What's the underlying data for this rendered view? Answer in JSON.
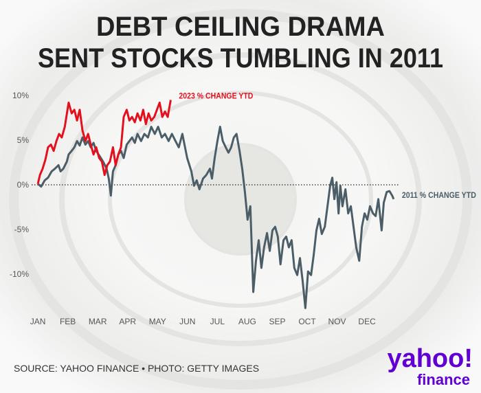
{
  "chart_data": {
    "type": "line",
    "title_lines": [
      "DEBT CEILING DRAMA",
      "SENT STOCKS TUMBLING IN 2011"
    ],
    "source": "SOURCE: YAHOO FINANCE • PHOTO: GETTY IMAGES",
    "logo": {
      "brand": "yahoo!",
      "product": "finance"
    },
    "xlim": [
      -0.3,
      12.1
    ],
    "xticks": [
      {
        "value": 0,
        "label": "JAN"
      },
      {
        "value": 1,
        "label": "FEB"
      },
      {
        "value": 2,
        "label": "MAR"
      },
      {
        "value": 3,
        "label": "APR"
      },
      {
        "value": 4,
        "label": "MAY"
      },
      {
        "value": 5,
        "label": "JUN"
      },
      {
        "value": 6,
        "label": "JUL"
      },
      {
        "value": 7,
        "label": "AUG"
      },
      {
        "value": 8,
        "label": "SEP"
      },
      {
        "value": 9,
        "label": "OCT"
      },
      {
        "value": 10,
        "label": "NOV"
      },
      {
        "value": 11,
        "label": "DEC"
      }
    ],
    "ylim": [
      -14.3,
      10.6
    ],
    "yticks": [
      {
        "value": 10,
        "label": "10%"
      },
      {
        "value": 5,
        "label": "5%"
      },
      {
        "value": 0,
        "label": "0%"
      },
      {
        "value": -5,
        "label": "-5%"
      },
      {
        "value": -10,
        "label": "-10%"
      }
    ],
    "series": [
      {
        "name": "2011 % CHANGE YTD",
        "color": "#4b5d66",
        "x": [
          0,
          0.11,
          0.23,
          0.34,
          0.46,
          0.57,
          0.69,
          0.76,
          0.85,
          0.97,
          1.03,
          1.13,
          1.22,
          1.31,
          1.4,
          1.49,
          1.59,
          1.68,
          1.77,
          1.86,
          1.95,
          2.07,
          2.18,
          2.3,
          2.37,
          2.44,
          2.51,
          2.6,
          2.69,
          2.78,
          2.87,
          2.97,
          3.06,
          3.15,
          3.24,
          3.33,
          3.45,
          3.56,
          3.68,
          3.79,
          3.91,
          4.02,
          4.14,
          4.25,
          4.37,
          4.48,
          4.6,
          4.71,
          4.83,
          4.9,
          4.99,
          5.13,
          5.22,
          5.31,
          5.4,
          5.52,
          5.63,
          5.75,
          5.82,
          5.91,
          6.0,
          6.09,
          6.18,
          6.28,
          6.37,
          6.46,
          6.55,
          6.64,
          6.74,
          6.83,
          6.92,
          7.01,
          7.1,
          7.2,
          7.29,
          7.38,
          7.47,
          7.56,
          7.66,
          7.75,
          7.84,
          7.93,
          8.02,
          8.11,
          8.21,
          8.3,
          8.39,
          8.48,
          8.57,
          8.67,
          8.76,
          8.85,
          8.94,
          9.03,
          9.13,
          9.22,
          9.31,
          9.4,
          9.49,
          9.59,
          9.68,
          9.77,
          9.84,
          9.91,
          9.98,
          10.05,
          10.11,
          10.18,
          10.28,
          10.37,
          10.46,
          10.55,
          10.64,
          10.74,
          10.83,
          10.92,
          11.01,
          11.1,
          11.2,
          11.29,
          11.38,
          11.49,
          11.56,
          11.66,
          11.75,
          11.84,
          11.89
        ],
        "values": [
          0.1,
          -0.2,
          0.5,
          0.8,
          1.5,
          1.8,
          2.2,
          1.5,
          1.8,
          2.6,
          3.4,
          3.8,
          4.2,
          4.9,
          4.4,
          5.3,
          4.5,
          4.9,
          4.2,
          4.7,
          3.8,
          3.2,
          2.6,
          1.8,
          0.7,
          -1.2,
          1.5,
          2.2,
          3.4,
          3.8,
          3.0,
          4.5,
          4.9,
          5.3,
          4.7,
          5.7,
          4.9,
          5.7,
          5.3,
          6.5,
          5.7,
          6.5,
          5.3,
          5.7,
          4.9,
          5.7,
          4.9,
          4.2,
          5.7,
          4.5,
          3.0,
          1.5,
          -0.1,
          0.5,
          -0.5,
          0.7,
          1.1,
          1.8,
          0.7,
          3.0,
          4.9,
          6.5,
          4.9,
          4.2,
          3.6,
          4.2,
          5.3,
          5.7,
          3.8,
          1.8,
          -0.8,
          -3.9,
          -2.4,
          -12.0,
          -8.5,
          -6.2,
          -9.3,
          -7.0,
          -5.4,
          -7.4,
          -5.1,
          -4.7,
          -5.8,
          -8.9,
          -6.2,
          -5.8,
          -7.0,
          -6.2,
          -9.3,
          -10.1,
          -8.2,
          -10.8,
          -13.8,
          -9.7,
          -10.1,
          -7.8,
          -5.1,
          -3.8,
          -5.5,
          -4.7,
          -2.4,
          -0.1,
          0.8,
          -1.6,
          0.3,
          -3.2,
          -0.1,
          -2.4,
          -0.5,
          -3.2,
          -2.4,
          -4.7,
          -7.0,
          -8.5,
          -4.7,
          -3.2,
          -3.9,
          -2.4,
          -3.2,
          -3.5,
          -1.6,
          -5.1,
          -2.0,
          -0.8,
          -0.7,
          -1.2,
          -1.6
        ]
      },
      {
        "name": "2023 % CHANGE YTD",
        "color": "#e3101e",
        "x": [
          0,
          0.07,
          0.16,
          0.25,
          0.34,
          0.44,
          0.53,
          0.62,
          0.71,
          0.8,
          0.9,
          0.99,
          1.03,
          1.13,
          1.22,
          1.31,
          1.4,
          1.49,
          1.59,
          1.68,
          1.77,
          1.86,
          1.95,
          2.05,
          2.14,
          2.23,
          2.32,
          2.41,
          2.51,
          2.6,
          2.69,
          2.78,
          2.87,
          2.97,
          3.06,
          3.15,
          3.24,
          3.33,
          3.43,
          3.52,
          3.61,
          3.7,
          3.79,
          3.89,
          3.98,
          4.07,
          4.16,
          4.25,
          4.34,
          4.44
        ],
        "values": [
          0.1,
          1.1,
          1.8,
          2.8,
          4.2,
          4.5,
          3.8,
          4.9,
          5.7,
          5.3,
          6.5,
          8.4,
          9.2,
          8.0,
          8.4,
          7.2,
          8.4,
          6.1,
          4.9,
          5.7,
          4.5,
          3.4,
          4.2,
          3.0,
          2.6,
          1.1,
          2.2,
          2.6,
          4.2,
          2.2,
          3.4,
          4.2,
          7.6,
          8.4,
          7.2,
          7.6,
          7.0,
          8.0,
          7.2,
          8.4,
          6.8,
          8.0,
          7.2,
          7.6,
          8.4,
          9.2,
          7.6,
          8.2,
          7.6,
          9.5
        ]
      }
    ]
  }
}
